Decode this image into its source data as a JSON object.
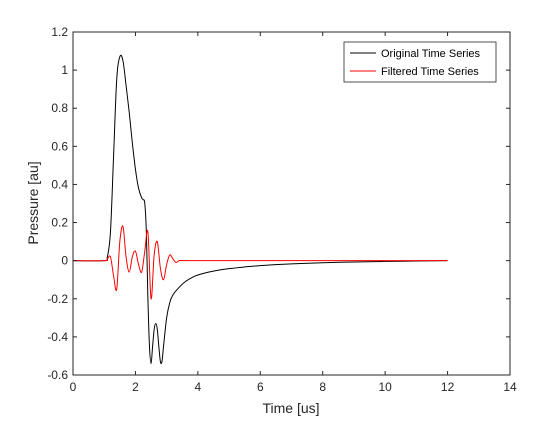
{
  "chart_data": {
    "type": "line",
    "title": "",
    "xlabel": "Time [us]",
    "ylabel": "Pressure [au]",
    "xlim": [
      0,
      14
    ],
    "ylim": [
      -0.6,
      1.2
    ],
    "xticks": [
      0,
      2,
      4,
      6,
      8,
      10,
      12,
      14
    ],
    "yticks": [
      -0.6,
      -0.4,
      -0.2,
      0,
      0.2,
      0.4,
      0.6,
      0.8,
      1,
      1.2
    ],
    "xtick_labels": [
      "0",
      "2",
      "4",
      "6",
      "8",
      "10",
      "12",
      "14"
    ],
    "ytick_labels": [
      "-0.6",
      "-0.4",
      "-0.2",
      "0",
      "0.2",
      "0.4",
      "0.6",
      "0.8",
      "1",
      "1.2"
    ],
    "grid": false,
    "legend_position": "top-right",
    "series": [
      {
        "name": "Original Time Series",
        "color": "#000000",
        "x": [
          0,
          1.0,
          1.1,
          1.2,
          1.3,
          1.4,
          1.5,
          1.6,
          1.7,
          1.8,
          1.9,
          2.0,
          2.1,
          2.2,
          2.25,
          2.3,
          2.35,
          2.4,
          2.45,
          2.5,
          2.55,
          2.6,
          2.65,
          2.7,
          2.75,
          2.8,
          2.85,
          2.9,
          3.0,
          3.1,
          3.2,
          3.4,
          3.6,
          3.8,
          4.0,
          4.5,
          5.0,
          5.5,
          6.0,
          7.0,
          8.0,
          9.0,
          10.0,
          11.0,
          12.0
        ],
        "y": [
          0,
          0,
          0.02,
          0.15,
          0.55,
          0.95,
          1.07,
          1.05,
          0.92,
          0.78,
          0.62,
          0.48,
          0.38,
          0.33,
          0.32,
          0.3,
          0.15,
          -0.2,
          -0.45,
          -0.54,
          -0.45,
          -0.36,
          -0.33,
          -0.36,
          -0.45,
          -0.53,
          -0.53,
          -0.45,
          -0.3,
          -0.22,
          -0.18,
          -0.14,
          -0.11,
          -0.09,
          -0.075,
          -0.055,
          -0.042,
          -0.033,
          -0.026,
          -0.017,
          -0.011,
          -0.007,
          -0.004,
          -0.002,
          0
        ]
      },
      {
        "name": "Filtered Time Series",
        "color": "#ff0000",
        "x": [
          0,
          1.0,
          1.1,
          1.2,
          1.3,
          1.4,
          1.5,
          1.6,
          1.7,
          1.8,
          1.9,
          2.0,
          2.1,
          2.2,
          2.3,
          2.4,
          2.5,
          2.6,
          2.7,
          2.8,
          2.9,
          3.0,
          3.1,
          3.2,
          3.3,
          3.4,
          3.6,
          4.0,
          5.0,
          6.0,
          8.0,
          10.0,
          12.0
        ],
        "y": [
          0,
          0,
          0.01,
          0.02,
          -0.08,
          -0.15,
          0.1,
          0.18,
          0.02,
          -0.06,
          0.02,
          0.05,
          -0.02,
          -0.06,
          0.05,
          0.15,
          -0.2,
          0.03,
          0.1,
          -0.04,
          -0.1,
          -0.02,
          0.03,
          0.01,
          -0.01,
          0.0,
          0.0,
          0.0,
          0.0,
          0.0,
          0.0,
          0.0,
          0.0
        ]
      }
    ]
  }
}
